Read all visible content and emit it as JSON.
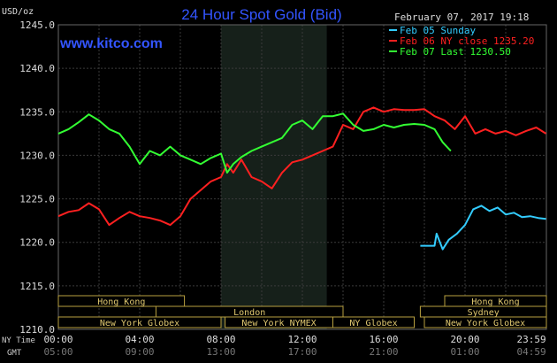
{
  "header": {
    "title": "24 Hour Spot Gold (Bid)",
    "unit": "USD/oz",
    "site": "www.kitco.com",
    "date": "February 07, 2017 19:18"
  },
  "legend": [
    {
      "label": "Feb 05 Sunday",
      "color": "#33ccff"
    },
    {
      "label": "Feb 06 NY close 1235.20",
      "color": "#ff2020"
    },
    {
      "label": "Feb 07 Last 1230.50",
      "color": "#33ff33"
    }
  ],
  "time_rows": {
    "ny_label": "NY Time",
    "gmt_label": "GMT"
  },
  "markets": [
    {
      "label": "Hong Kong",
      "start": 0,
      "end": 6.2,
      "row": 0
    },
    {
      "label": "London",
      "start": 4.8,
      "end": 14,
      "row": 1
    },
    {
      "label": "New York Globex",
      "start": 0,
      "end": 8,
      "row": 2
    },
    {
      "label": "New York NYMEX",
      "start": 8.2,
      "end": 13.5,
      "row": 2
    },
    {
      "label": "NY Globex",
      "start": 13.5,
      "end": 17.5,
      "row": 2
    },
    {
      "label": "Hong Kong",
      "start": 19,
      "end": 24,
      "row": 0
    },
    {
      "label": "Sydney",
      "start": 17.8,
      "end": 24,
      "row": 1
    },
    {
      "label": "New York Globex",
      "start": 18,
      "end": 24,
      "row": 2
    }
  ],
  "chart_data": {
    "type": "line",
    "title": "24 Hour Spot Gold (Bid)",
    "ylabel": "USD/oz",
    "ylim": [
      1210,
      1245
    ],
    "yticks": [
      "1245.0",
      "1240.0",
      "1235.0",
      "1230.0",
      "1225.0",
      "1220.0",
      "1215.0",
      "1210.0"
    ],
    "xlim": [
      0,
      24
    ],
    "xticks_ny": [
      "00:00",
      "04:00",
      "08:00",
      "12:00",
      "16:00",
      "20:00",
      "23:59"
    ],
    "xticks_gmt": [
      "05:00",
      "09:00",
      "13:00",
      "17:00",
      "21:00",
      "01:00",
      "04:59"
    ],
    "xtick_positions": [
      0,
      4,
      8,
      12,
      16,
      20,
      23.983
    ],
    "grid": true,
    "shaded_region": [
      8,
      13.2
    ],
    "series": [
      {
        "name": "Feb 05 Sunday",
        "color": "#33ccff",
        "x": [
          17.8,
          18.5,
          18.6,
          18.9,
          19.2,
          19.6,
          20.0,
          20.4,
          20.8,
          21.2,
          21.6,
          22.0,
          22.4,
          22.8,
          23.2,
          23.6,
          23.98
        ],
        "y": [
          1219.6,
          1219.6,
          1221.0,
          1219.2,
          1220.3,
          1221.0,
          1222.0,
          1223.8,
          1224.2,
          1223.6,
          1224.0,
          1223.2,
          1223.4,
          1222.9,
          1223.0,
          1222.8,
          1222.7
        ]
      },
      {
        "name": "Feb 06 NY close 1235.20",
        "color": "#ff2020",
        "x": [
          0,
          0.5,
          1.0,
          1.5,
          2.0,
          2.5,
          3.0,
          3.5,
          4.0,
          4.5,
          5.0,
          5.5,
          6.0,
          6.5,
          7.0,
          7.5,
          8.0,
          8.3,
          8.6,
          9.0,
          9.5,
          10.0,
          10.5,
          11.0,
          11.5,
          12.0,
          12.5,
          13.0,
          13.5,
          14.0,
          14.5,
          15.0,
          15.5,
          16.0,
          16.5,
          17.0,
          17.5,
          18.0,
          18.5,
          19.0,
          19.5,
          20.0,
          20.5,
          21.0,
          21.5,
          22.0,
          22.5,
          23.0,
          23.5,
          23.98
        ],
        "y": [
          1223.0,
          1223.5,
          1223.7,
          1224.5,
          1223.8,
          1222.0,
          1222.8,
          1223.5,
          1223.0,
          1222.8,
          1222.5,
          1222.0,
          1223.0,
          1225.0,
          1226.0,
          1227.0,
          1227.5,
          1229.0,
          1228.0,
          1229.5,
          1227.5,
          1227.0,
          1226.2,
          1228.0,
          1229.2,
          1229.5,
          1230.0,
          1230.5,
          1231.0,
          1233.5,
          1233.0,
          1235.0,
          1235.5,
          1235.0,
          1235.3,
          1235.2,
          1235.2,
          1235.3,
          1234.5,
          1234.0,
          1233.0,
          1234.5,
          1232.5,
          1233.0,
          1232.5,
          1232.8,
          1232.3,
          1232.8,
          1233.2,
          1232.5
        ]
      },
      {
        "name": "Feb 07 Last 1230.50",
        "color": "#33ff33",
        "x": [
          0,
          0.5,
          1.0,
          1.5,
          2.0,
          2.5,
          3.0,
          3.5,
          4.0,
          4.5,
          5.0,
          5.5,
          6.0,
          6.5,
          7.0,
          7.5,
          8.0,
          8.3,
          8.6,
          9.0,
          9.5,
          10.0,
          10.5,
          11.0,
          11.5,
          12.0,
          12.5,
          13.0,
          13.5,
          14.0,
          14.5,
          15.0,
          15.5,
          16.0,
          16.5,
          17.0,
          17.5,
          18.0,
          18.5,
          18.9,
          19.3
        ],
        "y": [
          1232.5,
          1233.0,
          1233.8,
          1234.7,
          1234.0,
          1233.0,
          1232.5,
          1231.0,
          1229.0,
          1230.5,
          1230.0,
          1231.0,
          1230.0,
          1229.5,
          1229.0,
          1229.7,
          1230.2,
          1228.0,
          1229.0,
          1229.8,
          1230.5,
          1231.0,
          1231.5,
          1232.0,
          1233.5,
          1234.0,
          1233.0,
          1234.5,
          1234.5,
          1234.8,
          1233.5,
          1232.8,
          1233.0,
          1233.5,
          1233.2,
          1233.5,
          1233.6,
          1233.5,
          1233.0,
          1231.5,
          1230.5
        ]
      }
    ]
  }
}
